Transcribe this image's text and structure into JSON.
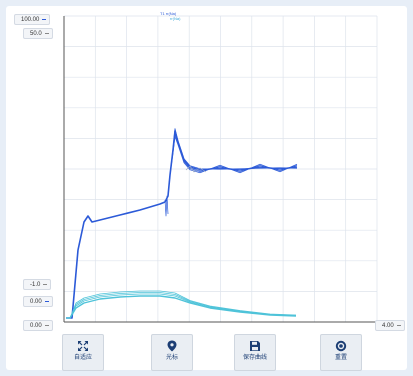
{
  "legend": {
    "line1": "T1 rr(Na)",
    "line2": "rr(Na)"
  },
  "y_axis_left": {
    "top": "100.00",
    "second": "50.0",
    "third": "-1.0",
    "fourth": "0.00",
    "bottom": "0.00"
  },
  "x_axis": {
    "right": "4.00"
  },
  "toolbar": {
    "autofit": "自适应",
    "cursor": "光标",
    "save_curve": "保存曲线",
    "reset": "重置"
  },
  "icons": {
    "autofit": "expand-arrows-icon",
    "cursor": "map-pin-icon",
    "save_curve": "floppy-disk-icon",
    "reset": "reset-circle-icon"
  },
  "colors": {
    "dark_series": "#2d5bd8",
    "light_series": "#4fc3d9",
    "grid": "#dde3ec",
    "accent": "#1c3e74"
  },
  "chart_data": {
    "type": "line",
    "xlabel": "",
    "ylabel": "",
    "xlim": [
      0,
      4.0
    ],
    "grid": true,
    "series_groups": [
      {
        "color": "#2d5bd8",
        "count": 4,
        "values_desc": ""
      },
      {
        "color": "#4fc3d9",
        "count": 4,
        "values_desc": ""
      }
    ]
  }
}
